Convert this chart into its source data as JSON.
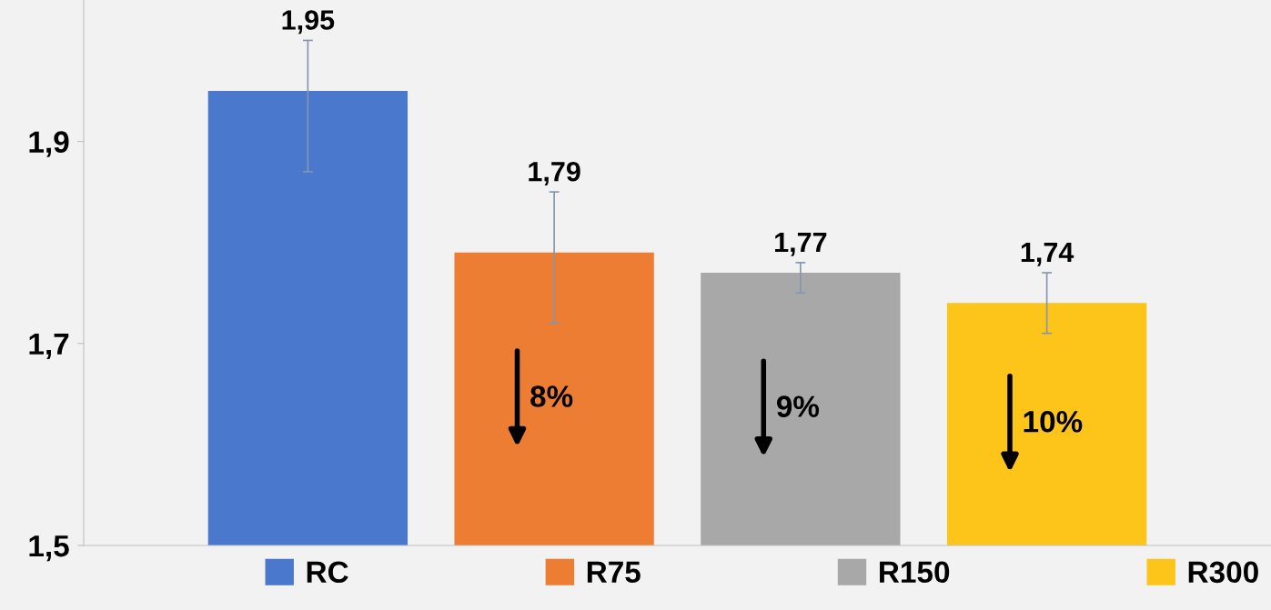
{
  "chart_data": {
    "type": "bar",
    "categories": [
      null,
      null,
      null,
      null
    ],
    "series": [
      {
        "name": "RC",
        "color": "#4a78cc",
        "values": [
          1.95,
          null,
          null,
          null
        ],
        "value_labels": [
          "1,95",
          null,
          null,
          null
        ],
        "errors": [
          [
            1.87,
            2.0
          ],
          null,
          null,
          null
        ]
      },
      {
        "name": "R75",
        "color": "#ee7d34",
        "values": [
          null,
          1.79,
          null,
          null
        ],
        "value_labels": [
          null,
          "1,79",
          null,
          null
        ],
        "errors": [
          null,
          [
            1.72,
            1.85
          ],
          null,
          null
        ]
      },
      {
        "name": "R150",
        "color": "#a8a8a8",
        "values": [
          null,
          null,
          1.77,
          null
        ],
        "value_labels": [
          null,
          null,
          "1,77",
          null
        ],
        "errors": [
          null,
          null,
          [
            1.75,
            1.78
          ],
          null
        ]
      },
      {
        "name": "R300",
        "color": "#fdc41a",
        "values": [
          null,
          null,
          null,
          1.74
        ],
        "value_labels": [
          null,
          null,
          null,
          "1,74"
        ],
        "errors": [
          null,
          null,
          null,
          [
            1.71,
            1.77
          ]
        ]
      }
    ],
    "ylim": [
      1.5,
      2.04
    ],
    "yticks": [
      {
        "value": 1.5,
        "label": "1,5"
      },
      {
        "value": 1.7,
        "label": "1,7"
      },
      {
        "value": 1.9,
        "label": "1,9"
      }
    ],
    "annotations": [
      "8%",
      "9%",
      "10%"
    ],
    "legend": "bottom",
    "grid": false
  }
}
